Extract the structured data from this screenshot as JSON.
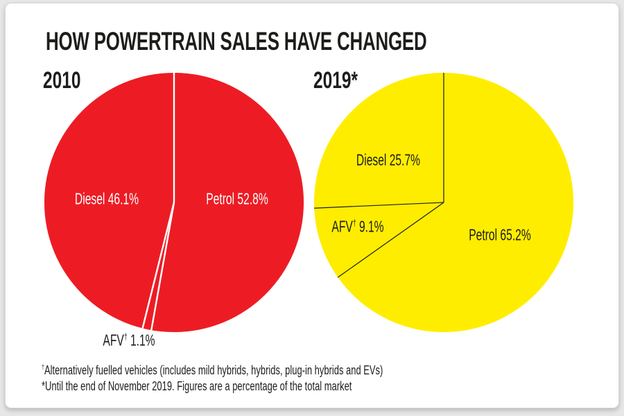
{
  "title": "HOW POWERTRAIN SALES HAVE CHANGED",
  "footnotes": [
    "†Alternatively fuelled vehicles (includes mild hybrids, hybrids, plug-in hybrids and EVs)",
    "*Until the end of November 2019. Figures are a percentage of the total market"
  ],
  "colors": {
    "card_bg": "#ffffff",
    "page_bg": "#e7e7e7",
    "text": "#1d1d1b",
    "red": "#ED1C24",
    "yellow": "#FFED00"
  },
  "chart_data": [
    {
      "type": "pie",
      "title": "2010",
      "unit": "percent_of_total_market",
      "start_angle_deg": 0,
      "direction": "clockwise",
      "fill": "#ED1C24",
      "divider_color": "#FFFFFF",
      "divider_width": 2.6,
      "label_color": "#FFFFFF",
      "slices": [
        {
          "label": "Petrol",
          "value": 52.8,
          "display": "Petrol 52.8%"
        },
        {
          "label": "AFV†",
          "value": 1.1,
          "display": "AFV† 1.1%"
        },
        {
          "label": "Diesel",
          "value": 46.1,
          "display": "Diesel 46.1%"
        }
      ]
    },
    {
      "type": "pie",
      "title": "2019*",
      "unit": "percent_of_total_market",
      "start_angle_deg": 0,
      "direction": "clockwise",
      "fill": "#FFED00",
      "divider_color": "#1D1D1B",
      "divider_width": 1.3,
      "label_color": "#1D1D1B",
      "slices": [
        {
          "label": "Petrol",
          "value": 65.2,
          "display": "Petrol 65.2%"
        },
        {
          "label": "AFV†",
          "value": 9.1,
          "display": "AFV† 9.1%"
        },
        {
          "label": "Diesel",
          "value": 25.7,
          "display": "Diesel 25.7%"
        }
      ]
    }
  ]
}
